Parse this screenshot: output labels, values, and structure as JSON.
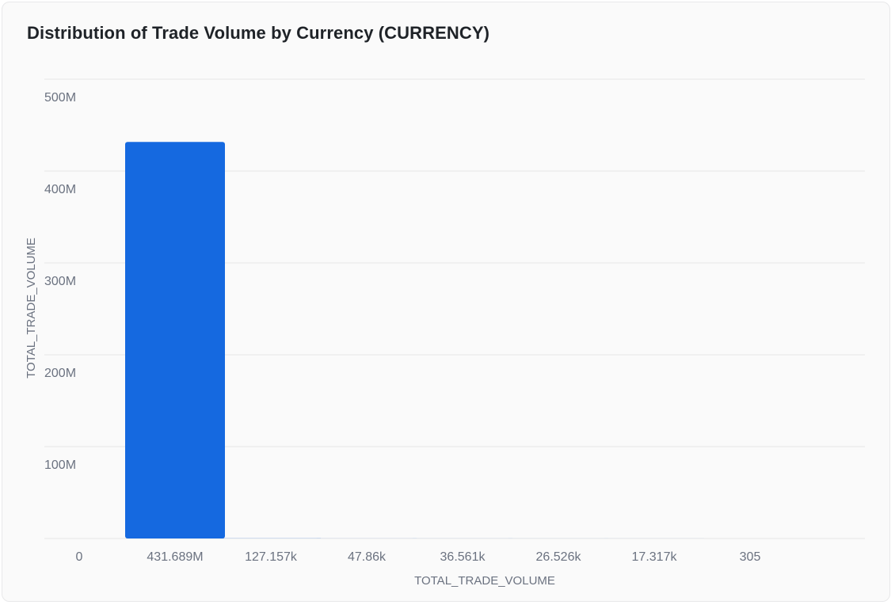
{
  "chart_data": {
    "type": "bar",
    "title": "Distribution of Trade Volume by Currency (CURRENCY)",
    "xlabel": "TOTAL_TRADE_VOLUME",
    "ylabel": "TOTAL_TRADE_VOLUME",
    "x_ticks": [
      "0",
      "431.689M",
      "127.157k",
      "47.86k",
      "36.561k",
      "26.526k",
      "17.317k",
      "305"
    ],
    "categories": [
      "431.689M",
      "127.157k",
      "47.86k",
      "36.561k",
      "26.526k",
      "17.317k",
      "305"
    ],
    "values": [
      431689000,
      127157,
      47860,
      36561,
      26526,
      17317,
      305
    ],
    "ylim": [
      0,
      500000000
    ],
    "y_ticks": [
      {
        "value": 100000000,
        "label": "100M"
      },
      {
        "value": 200000000,
        "label": "200M"
      },
      {
        "value": 300000000,
        "label": "300M"
      },
      {
        "value": 400000000,
        "label": "400M"
      },
      {
        "value": 500000000,
        "label": "500M"
      }
    ],
    "grid": true,
    "legend": false
  },
  "colors": {
    "bar": "#1569e0",
    "grid": "#e5e5e7",
    "tick_text": "#6b7280"
  }
}
